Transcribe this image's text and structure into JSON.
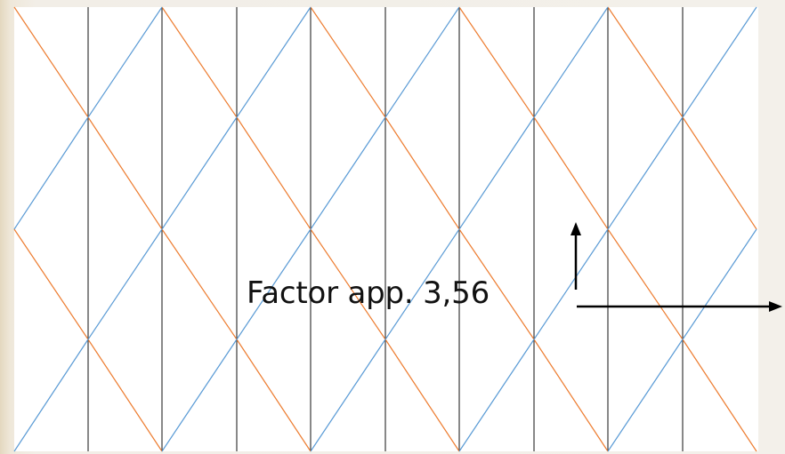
{
  "diagram": {
    "annotation": "Factor app. 3,56",
    "colors": {
      "background": "#ffffff",
      "vertical_lines": "#111111",
      "descending_lines": "#ed7d31",
      "ascending_lines": "#5b9bd5",
      "arrows": "#000000"
    }
  }
}
